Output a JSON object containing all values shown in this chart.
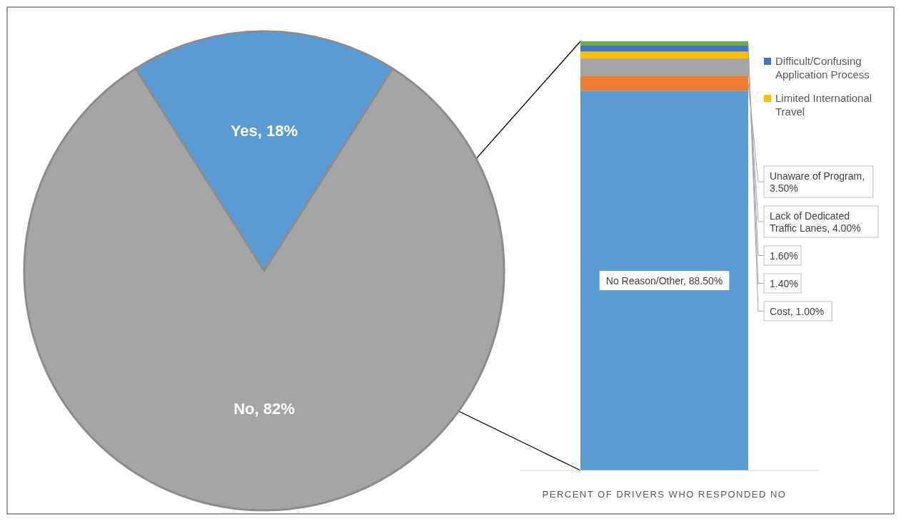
{
  "chart_data": [
    {
      "type": "pie",
      "categories": [
        "Yes",
        "No"
      ],
      "values": [
        18,
        82
      ],
      "colors": [
        "#5b9bd5",
        "#a5a5a5"
      ],
      "value_labels": [
        "18%",
        "82%"
      ]
    },
    {
      "type": "bar",
      "stacked": true,
      "categories": [
        null
      ],
      "ylim": [
        0,
        100
      ],
      "xlabel": "PERCENT OF DRIVERS WHO RESPONDED NO",
      "legend": "right",
      "series": [
        {
          "color": "#5b9bd5",
          "values": [
            88.5
          ],
          "value_labels": [
            "No Reason/Other, 88.50%"
          ]
        },
        {
          "color": "#ed7d31",
          "values": [
            3.5
          ],
          "value_labels": [
            "Unaware of Program, 3.50%"
          ]
        },
        {
          "color": "#a5a5a5",
          "values": [
            4.0
          ],
          "value_labels": [
            "Lack of Dedicated Traffic Lanes, 4.00%"
          ]
        },
        {
          "name": "Limited International Travel",
          "color": "#ffc000",
          "values": [
            1.6
          ],
          "value_labels": [
            "1.60%"
          ]
        },
        {
          "name": "Difficult/Confusing Application Process",
          "color": "#4472c4",
          "values": [
            1.4
          ],
          "value_labels": [
            "1.40%"
          ]
        },
        {
          "color": "#70ad47",
          "values": [
            1.0
          ],
          "value_labels": [
            "Cost, 1.00%"
          ]
        }
      ]
    }
  ]
}
